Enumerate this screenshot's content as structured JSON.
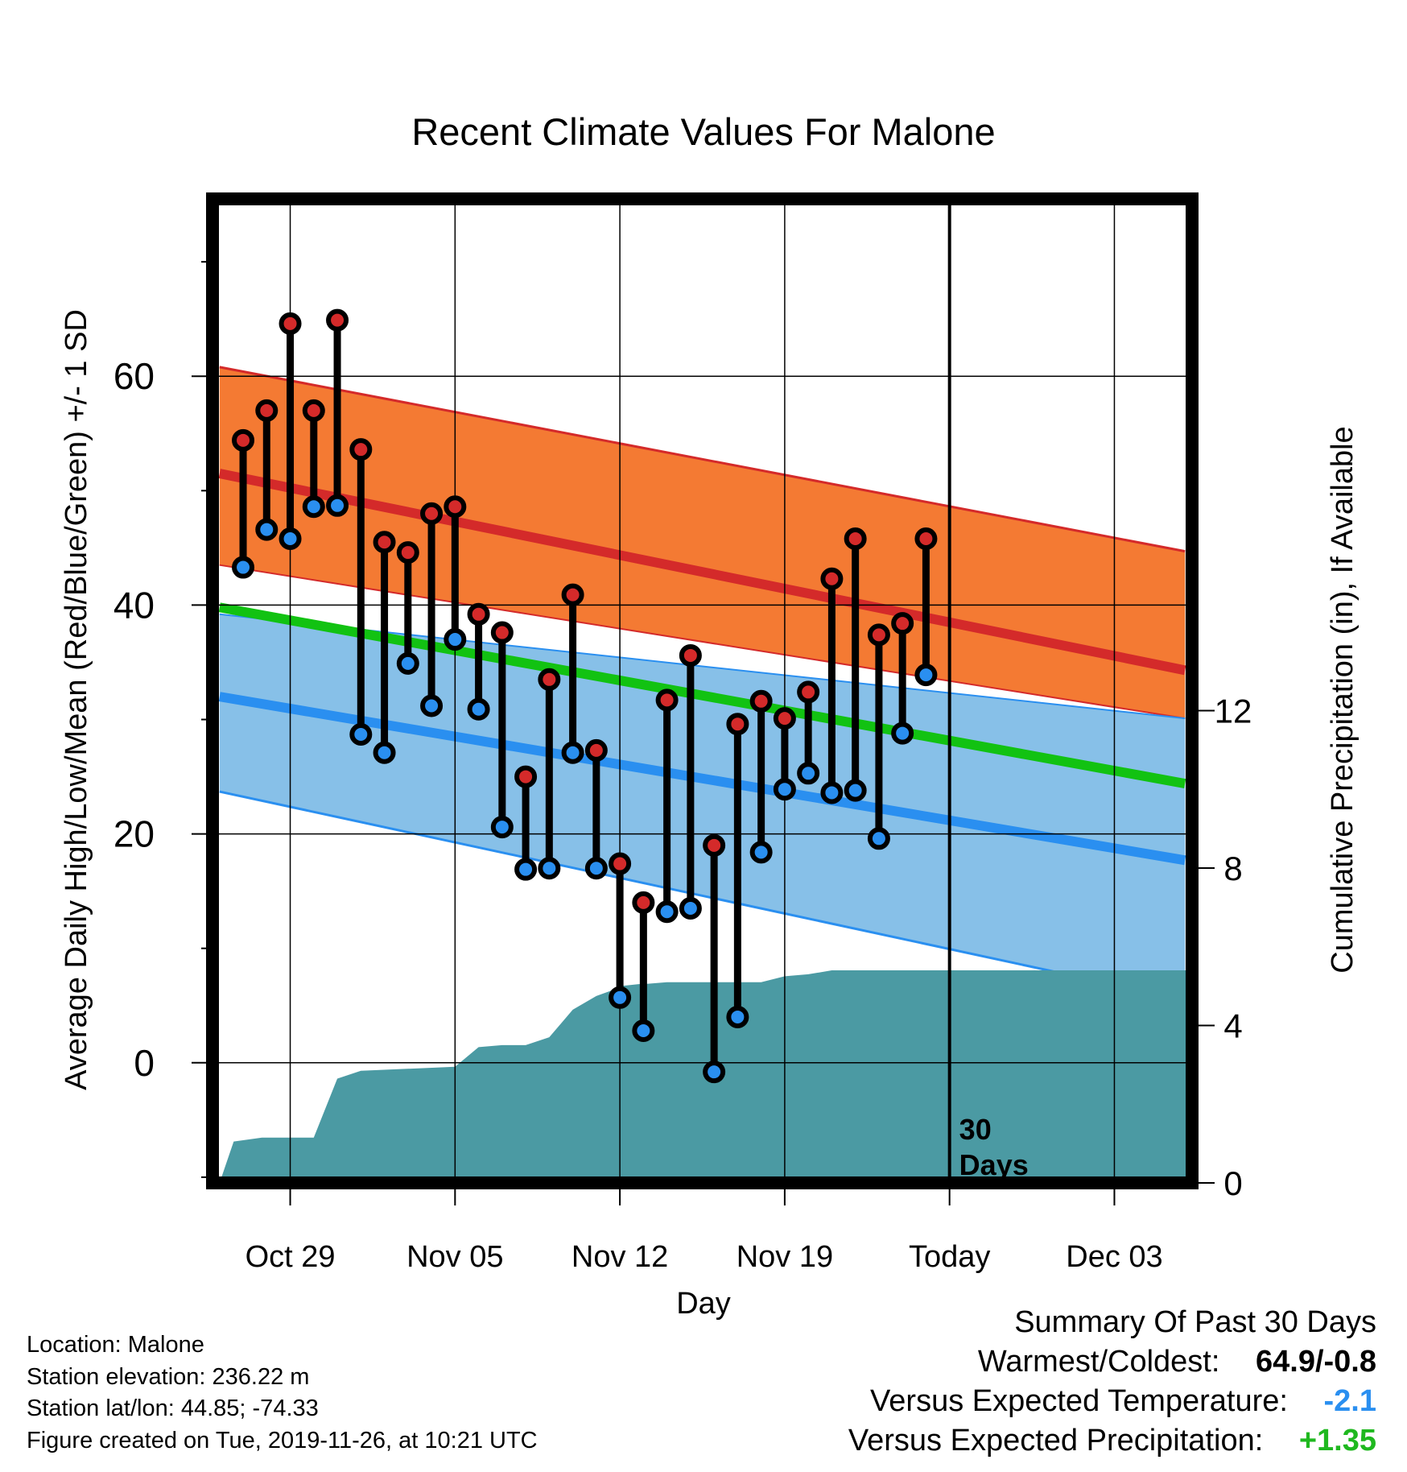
{
  "chart_data": {
    "type": "line",
    "title": "Recent Climate Values For Malone",
    "xlabel": "Day",
    "ylabel": "Average Daily High/Low/Mean (Red/Blue/Green) +/- 1 SD",
    "y2label": "Cumulative Precipitation (in), If Available",
    "xlim": [
      -3.3,
      38.3
    ],
    "ylim": [
      -10.5,
      75.5
    ],
    "y2lim": [
      0,
      25
    ],
    "x_ticks": [
      {
        "x": 0,
        "label": "Oct 29"
      },
      {
        "x": 7,
        "label": "Nov 05"
      },
      {
        "x": 14,
        "label": "Nov 12"
      },
      {
        "x": 21,
        "label": "Nov 19"
      },
      {
        "x": 28,
        "label": "Today"
      },
      {
        "x": 35,
        "label": "Dec 03"
      }
    ],
    "y_ticks": [
      0,
      20,
      40,
      60
    ],
    "y2_ticks": [
      0,
      4,
      8,
      12
    ],
    "grid": true,
    "today_x": 28,
    "today_marker_label": [
      "30",
      "Days"
    ],
    "normal_high": {
      "x": [
        -3,
        38
      ],
      "mean": [
        51.5,
        34.3
      ],
      "upper": [
        60.8,
        44.7
      ],
      "lower": [
        43.5,
        30.1
      ]
    },
    "normal_mean": {
      "x": [
        -3,
        38
      ],
      "mean": [
        39.8,
        24.4
      ]
    },
    "normal_low": {
      "x": [
        -3,
        38
      ],
      "mean": [
        32.0,
        17.7
      ],
      "upper": [
        39.2,
        30.1
      ],
      "lower": [
        23.7,
        5.5
      ]
    },
    "series": [
      {
        "name": "High",
        "color": "#d42a2a",
        "x": [
          -2,
          -1,
          0,
          1,
          2,
          3,
          4,
          5,
          6,
          7,
          8,
          9,
          10,
          11,
          12,
          13,
          14,
          15,
          16,
          17,
          18,
          19,
          20,
          21,
          22,
          23,
          24,
          25,
          26,
          27
        ],
        "values": [
          54.4,
          57.0,
          64.6,
          57.0,
          64.9,
          53.6,
          45.5,
          44.6,
          48.0,
          48.6,
          39.2,
          37.6,
          25.0,
          33.5,
          40.9,
          27.3,
          17.4,
          14.0,
          31.7,
          35.6,
          19.0,
          29.6,
          31.6,
          30.1,
          32.4,
          42.3,
          45.8,
          37.4,
          38.4,
          45.8
        ]
      },
      {
        "name": "Low",
        "color": "#2a8ff0",
        "x": [
          -2,
          -1,
          0,
          1,
          2,
          3,
          4,
          5,
          6,
          7,
          8,
          9,
          10,
          11,
          12,
          13,
          14,
          15,
          16,
          17,
          18,
          19,
          20,
          21,
          22,
          23,
          24,
          25,
          26,
          27
        ],
        "values": [
          43.3,
          46.6,
          45.8,
          48.6,
          48.7,
          28.7,
          27.1,
          34.9,
          31.2,
          37.0,
          30.9,
          20.6,
          16.9,
          17.0,
          27.1,
          17.0,
          5.7,
          2.8,
          13.2,
          13.5,
          -0.8,
          4.0,
          18.4,
          23.9,
          25.3,
          23.6,
          23.8,
          19.6,
          28.8,
          33.9
        ]
      }
    ],
    "precipitation": {
      "x": [
        -3,
        -2.4,
        -1.2,
        0,
        1,
        2,
        3,
        7,
        8,
        9,
        10,
        11,
        12,
        13,
        13.7,
        14,
        14.8,
        15,
        16,
        17,
        18,
        19,
        20,
        21,
        22,
        23,
        24,
        25,
        26,
        27,
        28,
        38.3
      ],
      "values": [
        0,
        1.05,
        1.15,
        1.15,
        1.15,
        2.65,
        2.85,
        2.95,
        3.45,
        3.5,
        3.5,
        3.7,
        4.4,
        4.75,
        4.9,
        5.0,
        5.05,
        5.05,
        5.1,
        5.1,
        5.1,
        5.1,
        5.1,
        5.25,
        5.3,
        5.4,
        5.4,
        5.4,
        5.4,
        5.4,
        5.4,
        5.4
      ]
    }
  },
  "info": {
    "location": "Location: Malone",
    "elevation": "Station elevation: 236.22 m",
    "latlon": "Station lat/lon: 44.85; -74.33",
    "created": "Figure created on Tue, 2019-11-26, at 10:21 UTC"
  },
  "summary": {
    "heading": "Summary Of Past 30 Days",
    "warmest_label": "Warmest/Coldest:",
    "warmest_value": "64.9/-0.8",
    "temp_label": "Versus Expected Temperature:",
    "temp_value": "-2.1",
    "temp_color": "#2a8ff0",
    "precip_label": "Versus Expected Precipitation:",
    "precip_value": "+1.35",
    "precip_color": "#1fb81f"
  },
  "colors": {
    "high_band": "#f47a33",
    "high_line": "#d42a2a",
    "overlap_band": "#8b1a1a",
    "low_band": "#87c0e8",
    "low_line": "#2a8ff0",
    "mean_line": "#12c212",
    "precip": "#4b9aa3"
  }
}
